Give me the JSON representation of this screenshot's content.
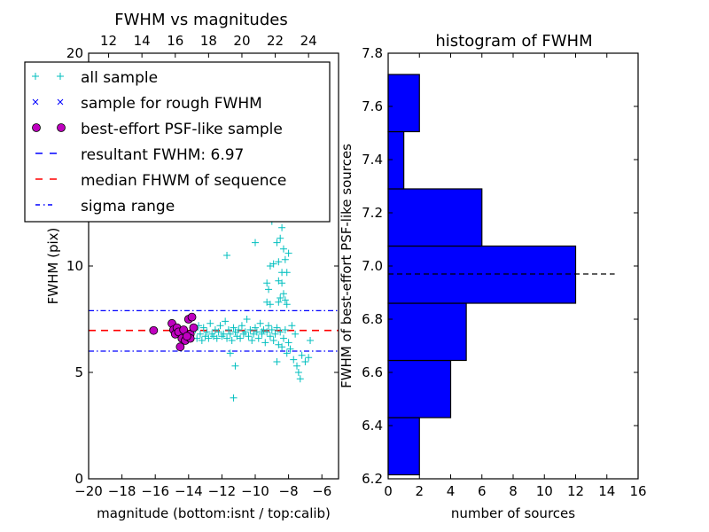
{
  "chart_data": [
    {
      "type": "scatter",
      "title": "FWHM vs magnitudes",
      "xlabel": "magnitude (bottom:isnt / top:calib)",
      "ylabel": "FWHM (pix)",
      "xlim": [
        -20,
        -5
      ],
      "ylim": [
        0,
        20
      ],
      "xticks": [
        -20,
        -18,
        -16,
        -14,
        -12,
        -10,
        -8,
        -6
      ],
      "xtick_labels": [
        "−20",
        "−18",
        "−16",
        "−14",
        "−12",
        "−10",
        "−8",
        "−6"
      ],
      "yticks": [
        0,
        5,
        10,
        20
      ],
      "ytick_labels": [
        "0",
        "5",
        "10",
        "20"
      ],
      "top_xticks": [
        12,
        14,
        16,
        18,
        20,
        22,
        24
      ],
      "top_xtick_labels": [
        "12",
        "14",
        "16",
        "18",
        "20",
        "22",
        "24"
      ],
      "top_xlim": [
        10.8,
        25.8
      ],
      "legend": {
        "placement": "upper-left",
        "entries": [
          {
            "label": "all sample",
            "marker": "+",
            "color": "#00bfbf"
          },
          {
            "label": "sample for rough FWHM",
            "marker": "x",
            "color": "#0000ff"
          },
          {
            "label": "best-effort PSF-like sample",
            "marker": "o",
            "color": "#bf00bf"
          },
          {
            "label": "resultant FWHM: 6.97",
            "linestyle": "dashed",
            "color": "#0000ff"
          },
          {
            "label": "median FHWM of sequence",
            "linestyle": "dashed",
            "color": "#ff0000"
          },
          {
            "label": "sigma range",
            "linestyle": "dashdot",
            "color": "#0000ff"
          }
        ]
      },
      "lines": {
        "resultant_fwhm": 6.97,
        "median_fwhm": 6.97,
        "sigma_upper": 7.9,
        "sigma_lower": 6.0
      },
      "series": [
        {
          "name": "all sample",
          "color": "#00bfbf",
          "points": [
            [
              -13.6,
              7.0
            ],
            [
              -13.5,
              6.6
            ],
            [
              -13.4,
              7.2
            ],
            [
              -13.3,
              6.8
            ],
            [
              -13.2,
              6.5
            ],
            [
              -13.1,
              7.1
            ],
            [
              -13.0,
              6.7
            ],
            [
              -12.9,
              6.9
            ],
            [
              -12.8,
              6.6
            ],
            [
              -12.7,
              7.3
            ],
            [
              -12.6,
              6.8
            ],
            [
              -12.5,
              6.7
            ],
            [
              -12.4,
              7.0
            ],
            [
              -12.3,
              6.6
            ],
            [
              -12.2,
              6.9
            ],
            [
              -12.1,
              7.2
            ],
            [
              -12.0,
              6.7
            ],
            [
              -11.9,
              6.8
            ],
            [
              -11.8,
              7.4
            ],
            [
              -11.7,
              6.6
            ],
            [
              -11.6,
              7.0
            ],
            [
              -11.5,
              6.8
            ],
            [
              -11.4,
              6.5
            ],
            [
              -11.3,
              7.1
            ],
            [
              -11.2,
              6.9
            ],
            [
              -11.1,
              6.7
            ],
            [
              -11.0,
              7.0
            ],
            [
              -10.9,
              6.6
            ],
            [
              -10.8,
              7.2
            ],
            [
              -10.7,
              6.8
            ],
            [
              -10.6,
              6.9
            ],
            [
              -10.5,
              7.5
            ],
            [
              -10.4,
              6.7
            ],
            [
              -10.3,
              7.0
            ],
            [
              -10.2,
              6.5
            ],
            [
              -10.1,
              6.8
            ],
            [
              -10.0,
              7.1
            ],
            [
              -9.9,
              6.9
            ],
            [
              -9.8,
              6.6
            ],
            [
              -9.7,
              7.3
            ],
            [
              -9.6,
              6.8
            ],
            [
              -9.5,
              7.0
            ],
            [
              -9.4,
              6.4
            ],
            [
              -9.3,
              6.9
            ],
            [
              -9.2,
              7.2
            ],
            [
              -9.1,
              6.7
            ],
            [
              -9.0,
              7.0
            ],
            [
              -8.9,
              6.5
            ],
            [
              -8.8,
              6.8
            ],
            [
              -8.7,
              7.1
            ],
            [
              -8.6,
              6.3
            ],
            [
              -8.5,
              6.9
            ],
            [
              -8.4,
              6.2
            ],
            [
              -8.3,
              6.6
            ],
            [
              -8.2,
              7.0
            ],
            [
              -8.1,
              5.9
            ],
            [
              -8.0,
              6.4
            ],
            [
              -7.9,
              6.1
            ],
            [
              -7.8,
              7.2
            ],
            [
              -7.7,
              5.6
            ],
            [
              -7.6,
              6.8
            ],
            [
              -7.5,
              5.3
            ],
            [
              -7.4,
              5.0
            ],
            [
              -7.3,
              4.7
            ],
            [
              -7.2,
              5.8
            ],
            [
              -7.0,
              5.5
            ],
            [
              -6.8,
              5.7
            ],
            [
              -6.7,
              6.5
            ],
            [
              -11.7,
              10.5
            ],
            [
              -10.0,
              11.1
            ],
            [
              -9.0,
              12.1
            ],
            [
              -8.4,
              11.8
            ],
            [
              -8.7,
              11.1
            ],
            [
              -8.5,
              11.3
            ],
            [
              -8.3,
              10.8
            ],
            [
              -8.0,
              10.6
            ],
            [
              -8.6,
              10.2
            ],
            [
              -8.9,
              10.1
            ],
            [
              -9.1,
              10.0
            ],
            [
              -8.2,
              10.3
            ],
            [
              -8.4,
              9.7
            ],
            [
              -8.1,
              9.7
            ],
            [
              -9.3,
              9.2
            ],
            [
              -9.2,
              8.9
            ],
            [
              -8.6,
              9.3
            ],
            [
              -8.4,
              9.2
            ],
            [
              -8.3,
              8.7
            ],
            [
              -8.5,
              8.5
            ],
            [
              -9.3,
              8.3
            ],
            [
              -9.1,
              8.2
            ],
            [
              -8.6,
              8.3
            ],
            [
              -8.2,
              8.4
            ],
            [
              -8.1,
              8.2
            ],
            [
              -11.3,
              3.8
            ],
            [
              -11.2,
              5.3
            ],
            [
              -11.5,
              5.9
            ],
            [
              -8.7,
              5.5
            ],
            [
              -9.6,
              6.9
            ]
          ]
        },
        {
          "name": "best-effort PSF-like sample",
          "color": "#bf00bf",
          "points": [
            [
              -16.1,
              6.97
            ],
            [
              -15.0,
              7.3
            ],
            [
              -14.9,
              7.0
            ],
            [
              -14.8,
              6.8
            ],
            [
              -14.7,
              7.1
            ],
            [
              -14.6,
              6.9
            ],
            [
              -14.5,
              6.2
            ],
            [
              -14.4,
              6.6
            ],
            [
              -14.3,
              7.0
            ],
            [
              -14.2,
              6.5
            ],
            [
              -14.0,
              7.5
            ],
            [
              -13.9,
              6.8
            ],
            [
              -13.8,
              7.6
            ],
            [
              -13.7,
              7.1
            ],
            [
              -13.9,
              6.6
            ],
            [
              -14.1,
              6.7
            ]
          ]
        }
      ]
    },
    {
      "type": "bar",
      "orientation": "horizontal",
      "title": "histogram of FWHM",
      "xlabel": "number of sources",
      "ylabel": "FWHM of best-effort PSF-like sources",
      "xlim": [
        0,
        16
      ],
      "ylim": [
        6.2,
        7.8
      ],
      "xticks": [
        0,
        2,
        4,
        6,
        8,
        10,
        12,
        14,
        16
      ],
      "xtick_labels": [
        "0",
        "2",
        "4",
        "6",
        "8",
        "10",
        "12",
        "14",
        "16"
      ],
      "yticks": [
        6.2,
        6.4,
        6.6,
        6.8,
        7.0,
        7.2,
        7.4,
        7.6,
        7.8
      ],
      "ytick_labels": [
        "6.2",
        "6.4",
        "6.6",
        "6.8",
        "7.0",
        "7.2",
        "7.4",
        "7.6",
        "7.8"
      ],
      "bin_edges": [
        6.215,
        6.43,
        6.645,
        6.86,
        7.075,
        7.29,
        7.505,
        7.72
      ],
      "values": [
        2,
        4,
        5,
        12,
        6,
        1,
        2
      ],
      "bar_color": "#0000ff",
      "reference_line": {
        "value": 6.97,
        "extent": 14.5,
        "color": "#000000",
        "linestyle": "dashed"
      }
    }
  ]
}
